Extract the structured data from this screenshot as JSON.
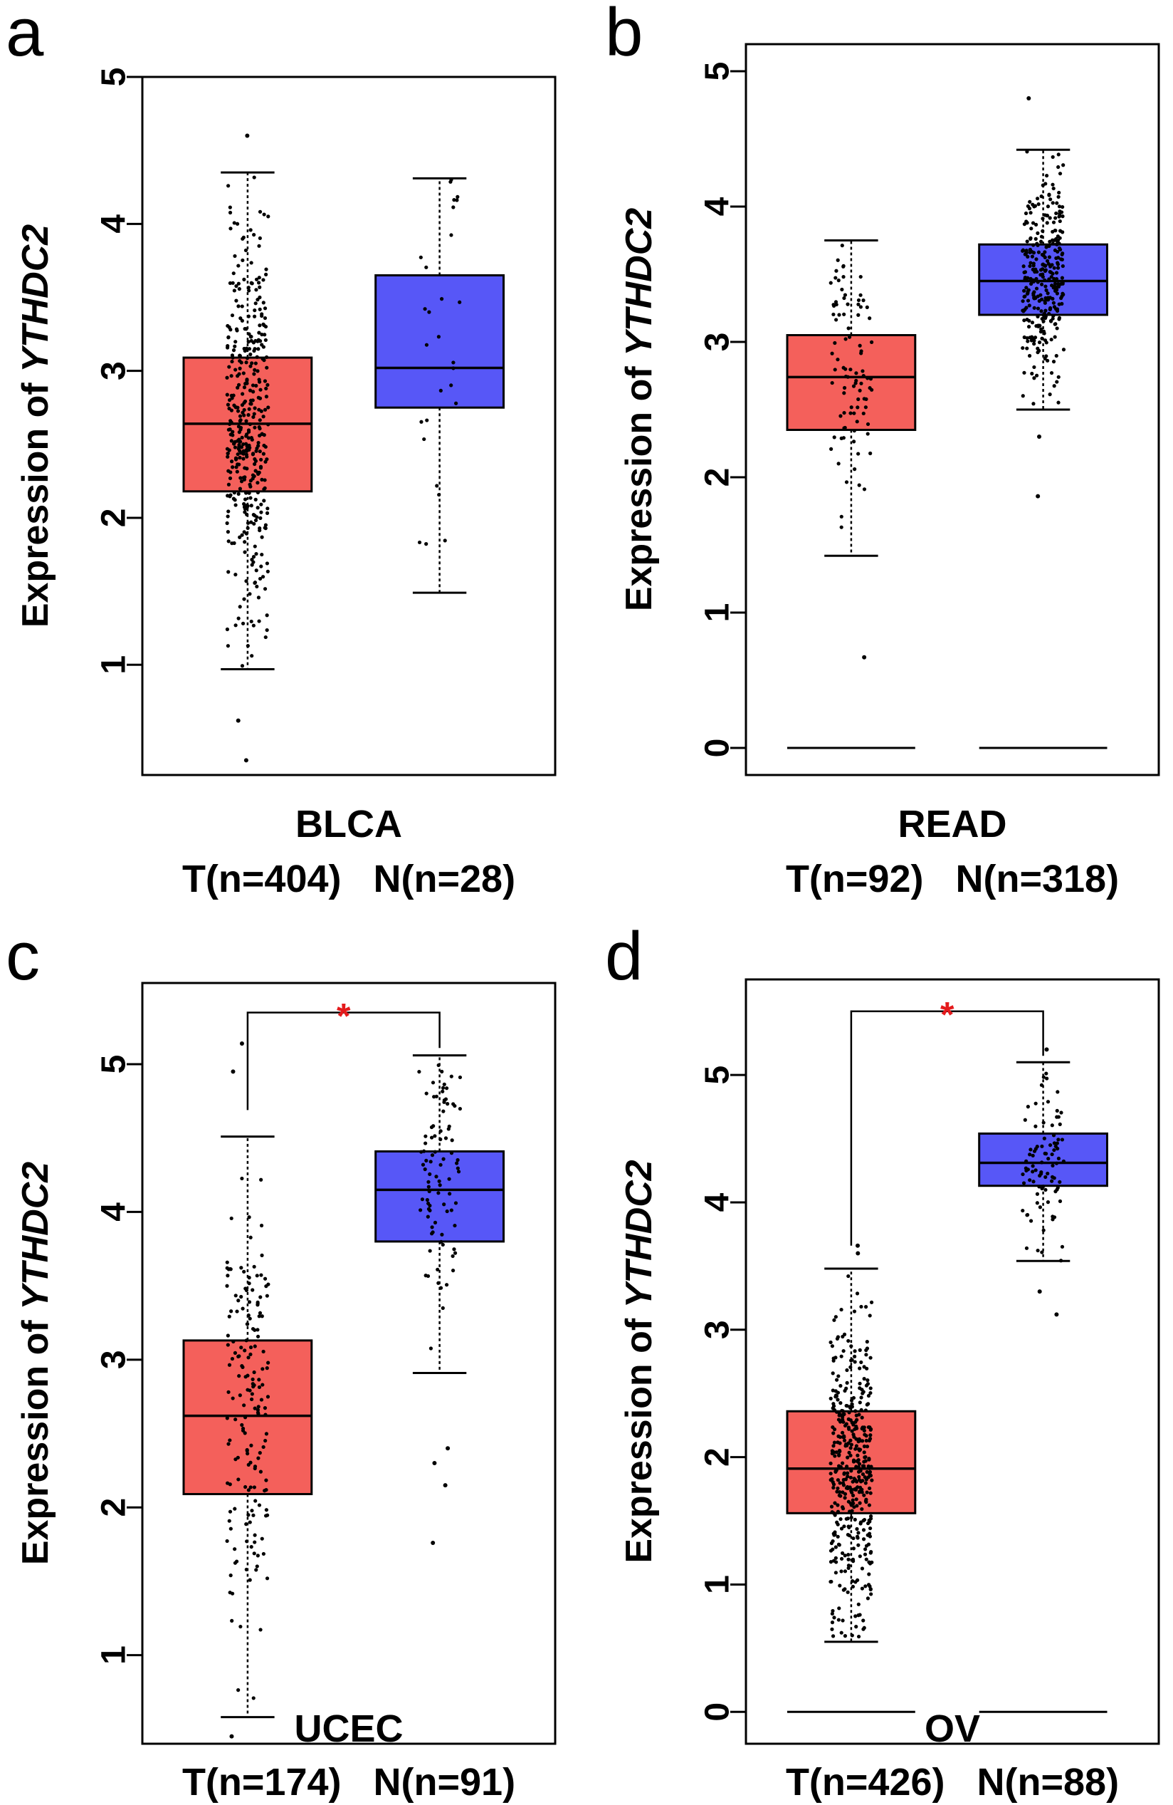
{
  "figure": {
    "background": "#ffffff",
    "tumor_color": "#f4605b",
    "normal_color": "#5757f7",
    "star_color": "#e41a1c"
  },
  "chart_data": [
    {
      "type": "box",
      "panel": "a",
      "ylabel_prefix": "Expression of ",
      "ylabel_gene": "YTHDC2",
      "ylim": [
        0.25,
        5.0
      ],
      "yticks": [
        1,
        2,
        3,
        4,
        5
      ],
      "category": "BLCA",
      "group_labels": "T(n=404)   N(n=28)",
      "significant": false,
      "significance_label": "",
      "series": [
        {
          "n": 404,
          "whisker_low": 0.97,
          "q1": 2.18,
          "median": 2.64,
          "q3": 3.09,
          "whisker_high": 4.35,
          "outliers": [
            4.6,
            0.62,
            0.35
          ]
        },
        {
          "n": 28,
          "whisker_low": 1.49,
          "q1": 2.75,
          "median": 3.02,
          "q3": 3.65,
          "whisker_high": 4.31,
          "outliers": []
        }
      ]
    },
    {
      "type": "box",
      "panel": "b",
      "ylabel_prefix": "Expression of ",
      "ylabel_gene": "YTHDC2",
      "ylim": [
        -0.2,
        5.2
      ],
      "yticks": [
        0,
        1,
        2,
        3,
        4,
        5
      ],
      "category": "READ",
      "group_labels": "T(n=92)   N(n=318)",
      "significant": false,
      "significance_label": "",
      "series": [
        {
          "n": 92,
          "whisker_low": 1.42,
          "q1": 2.35,
          "median": 2.74,
          "q3": 3.05,
          "whisker_high": 3.75,
          "outliers": [
            0.67
          ],
          "baseline": 0
        },
        {
          "n": 318,
          "whisker_low": 2.5,
          "q1": 3.2,
          "median": 3.45,
          "q3": 3.72,
          "whisker_high": 4.42,
          "outliers": [
            4.8,
            2.3,
            1.86
          ],
          "baseline": 0
        }
      ]
    },
    {
      "type": "box",
      "panel": "c",
      "ylabel_prefix": "Expression of ",
      "ylabel_gene": "YTHDC2",
      "ylim": [
        0.4,
        5.55
      ],
      "yticks": [
        1,
        2,
        3,
        4,
        5
      ],
      "category": "UCEC",
      "group_labels": "T(n=174)   N(n=91)",
      "significant": true,
      "significance_label": "*",
      "bracket_y": 5.35,
      "series": [
        {
          "n": 174,
          "whisker_low": 0.58,
          "q1": 2.09,
          "median": 2.62,
          "q3": 3.13,
          "whisker_high": 4.51,
          "outliers": [
            5.14,
            4.95,
            0.45
          ]
        },
        {
          "n": 91,
          "whisker_low": 2.91,
          "q1": 3.8,
          "median": 4.15,
          "q3": 4.41,
          "whisker_high": 5.06,
          "outliers": [
            2.4,
            2.3,
            2.15,
            1.76
          ]
        }
      ]
    },
    {
      "type": "box",
      "panel": "d",
      "ylabel_prefix": "Expression of ",
      "ylabel_gene": "YTHDC2",
      "ylim": [
        -0.25,
        5.75
      ],
      "yticks": [
        0,
        1,
        2,
        3,
        4,
        5
      ],
      "category": "OV",
      "group_labels": "T(n=426)   N(n=88)",
      "significant": true,
      "significance_label": "*",
      "bracket_y": 5.5,
      "series": [
        {
          "n": 426,
          "whisker_low": 0.55,
          "q1": 1.56,
          "median": 1.91,
          "q3": 2.36,
          "whisker_high": 3.48,
          "outliers": [
            3.6,
            3.66
          ],
          "baseline": 0
        },
        {
          "n": 88,
          "whisker_low": 3.54,
          "q1": 4.13,
          "median": 4.31,
          "q3": 4.54,
          "whisker_high": 5.1,
          "outliers": [
            5.2,
            3.3,
            3.12
          ],
          "baseline": 0
        }
      ]
    }
  ]
}
